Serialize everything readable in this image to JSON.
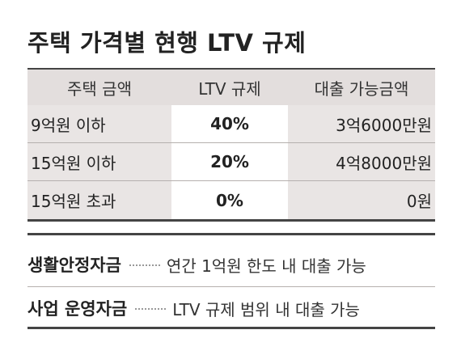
{
  "title": "주택 가격별 현행 LTV 규제",
  "table": {
    "headers": [
      "주택 금액",
      "LTV 규제",
      "대출 가능금액"
    ],
    "rows": [
      {
        "price": "9억원 이하",
        "ltv": "40%",
        "amount": "3억6000만원"
      },
      {
        "price": "15억원 이하",
        "ltv": "20%",
        "amount": "4억8000만원"
      },
      {
        "price": "15억원 초과",
        "ltv": "0%",
        "amount": "0원"
      }
    ]
  },
  "notes": [
    {
      "label": "생활안정자금",
      "text": "연간 1억원 한도 내 대출 가능"
    },
    {
      "label": "사업 운영자금",
      "text": "LTV 규제 범위 내 대출 가능"
    }
  ],
  "colors": {
    "header_bg": "#e3dedd",
    "shade": "#e9e5e4",
    "rule": "#444444"
  }
}
